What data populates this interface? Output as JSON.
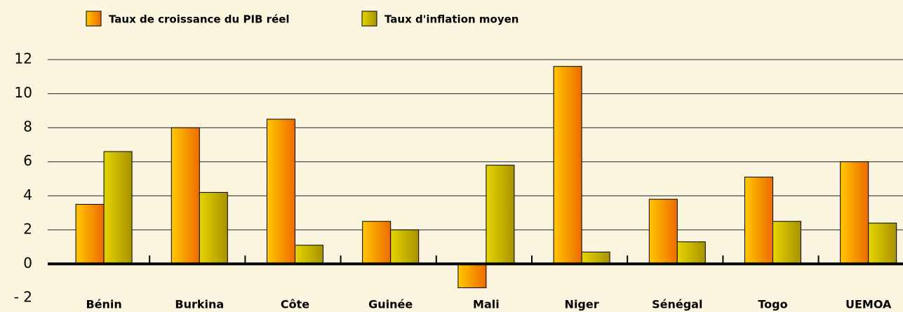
{
  "chart_data": {
    "type": "bar",
    "categories": [
      "Bénin",
      "Burkina",
      "Côte",
      "Guinée",
      "Mali",
      "Niger",
      "Sénégal",
      "Togo",
      "UEMOA"
    ],
    "series": [
      {
        "name": "Taux de croissance du PIB réel",
        "color": "#ee6a00",
        "values": [
          3.5,
          8.0,
          8.5,
          2.5,
          -1.4,
          11.6,
          3.8,
          5.1,
          6.0
        ]
      },
      {
        "name": "Taux d'inflation moyen",
        "color": "#a89200",
        "values": [
          6.6,
          4.2,
          1.1,
          2.0,
          5.8,
          0.7,
          1.3,
          2.5,
          2.4
        ]
      }
    ],
    "ylim": [
      -2,
      12
    ],
    "yticks": [
      {
        "value": -2,
        "label": "- 2"
      },
      0,
      2,
      4,
      6,
      8,
      10,
      12
    ],
    "grid": true
  }
}
